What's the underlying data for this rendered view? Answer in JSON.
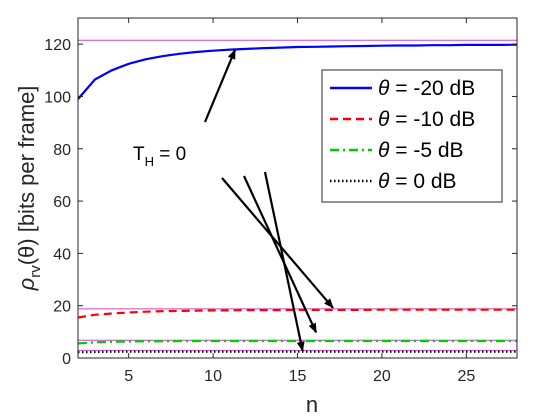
{
  "chart_data": {
    "type": "line",
    "xlabel": "n",
    "ylabel": {
      "main": "ρ",
      "sub": "rv",
      "arg": "(θ) [bits per frame]"
    },
    "xlim": [
      2,
      28
    ],
    "ylim": [
      0,
      130
    ],
    "xticks": [
      5,
      10,
      15,
      20,
      25
    ],
    "yticks": [
      0,
      20,
      40,
      60,
      80,
      100,
      120
    ],
    "grid": false,
    "legend_position": "upper-right",
    "x": [
      2,
      3,
      4,
      5,
      6,
      7,
      8,
      9,
      10,
      11,
      12,
      13,
      14,
      15,
      16,
      17,
      18,
      19,
      20,
      21,
      22,
      23,
      24,
      25,
      26,
      27,
      28
    ],
    "series": [
      {
        "name": "θ = -20 dB",
        "color": "#0000ff",
        "style": "solid",
        "values": [
          99.0,
          106.5,
          110.0,
          112.5,
          114.2,
          115.4,
          116.3,
          117.0,
          117.5,
          117.9,
          118.2,
          118.5,
          118.7,
          118.9,
          119.0,
          119.1,
          119.2,
          119.3,
          119.4,
          119.5,
          119.5,
          119.6,
          119.6,
          119.7,
          119.7,
          119.7,
          119.8
        ]
      },
      {
        "name": "θ = -10 dB",
        "color": "#ff0000",
        "style": "dashed",
        "values": [
          15.5,
          16.5,
          17.0,
          17.4,
          17.7,
          17.9,
          18.0,
          18.1,
          18.2,
          18.2,
          18.3,
          18.3,
          18.3,
          18.4,
          18.4,
          18.4,
          18.4,
          18.4,
          18.5,
          18.5,
          18.5,
          18.5,
          18.5,
          18.5,
          18.5,
          18.5,
          18.5
        ]
      },
      {
        "name": "θ = -5 dB",
        "color": "#00cc00",
        "style": "dashdot",
        "values": [
          5.6,
          6.0,
          6.2,
          6.3,
          6.4,
          6.4,
          6.5,
          6.5,
          6.5,
          6.5,
          6.5,
          6.5,
          6.5,
          6.5,
          6.5,
          6.5,
          6.5,
          6.5,
          6.5,
          6.5,
          6.5,
          6.5,
          6.5,
          6.5,
          6.5,
          6.5,
          6.5
        ]
      },
      {
        "name": "θ = 0 dB",
        "color": "#000000",
        "style": "dotted",
        "values": [
          2.2,
          2.3,
          2.4,
          2.4,
          2.4,
          2.4,
          2.4,
          2.4,
          2.4,
          2.4,
          2.4,
          2.4,
          2.4,
          2.4,
          2.4,
          2.4,
          2.4,
          2.4,
          2.4,
          2.4,
          2.4,
          2.4,
          2.4,
          2.4,
          2.4,
          2.4,
          2.4
        ]
      }
    ],
    "reference_lines": [
      {
        "y": 121.5,
        "color": "#cc44cc"
      },
      {
        "y": 18.8,
        "color": "#cc44cc"
      },
      {
        "y": 6.8,
        "color": "#cc44cc"
      },
      {
        "y": 2.9,
        "color": "#cc44cc"
      }
    ],
    "annotation": {
      "text_main": "T",
      "text_sub": "H",
      "text_rest": " =  0",
      "arrow_targets": [
        {
          "x": 11.3,
          "y": 117.8
        },
        {
          "x": 17.1,
          "y": 19.2
        },
        {
          "x": 16.1,
          "y": 9.8
        },
        {
          "x": 15.3,
          "y": 2.8
        }
      ]
    }
  }
}
